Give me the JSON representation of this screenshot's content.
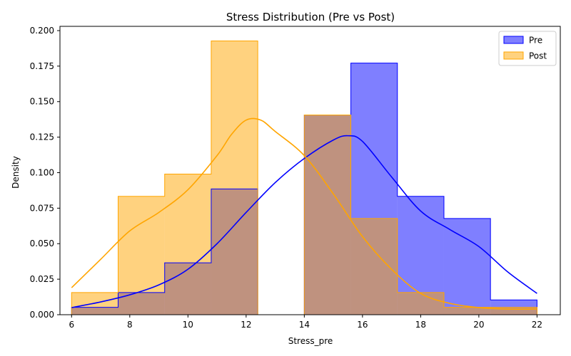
{
  "chart_data": {
    "type": "histogram",
    "title": "Stress Distribution (Pre vs Post)",
    "xlabel": "Stress_pre",
    "ylabel": "Density",
    "xlim": [
      5.6,
      22.8
    ],
    "ylim": [
      0,
      0.203
    ],
    "xticks": [
      6,
      8,
      10,
      12,
      14,
      16,
      18,
      20,
      22
    ],
    "xtick_labels": [
      "6",
      "8",
      "10",
      "12",
      "14",
      "16",
      "18",
      "20",
      "22"
    ],
    "yticks": [
      0,
      0.025,
      0.05,
      0.075,
      0.1,
      0.125,
      0.15,
      0.175,
      0.2
    ],
    "ytick_labels": [
      "0.000",
      "0.025",
      "0.050",
      "0.075",
      "0.100",
      "0.125",
      "0.150",
      "0.175",
      "0.200"
    ],
    "bin_edges": [
      6.0,
      7.6,
      9.2,
      10.8,
      12.4,
      14.0,
      15.6,
      17.2,
      18.8,
      20.4,
      22.0
    ],
    "legend_position": "upper right",
    "grid": false,
    "series": [
      {
        "name": "Pre",
        "fill_color": "#0000ff",
        "fill_opacity": 0.5,
        "edge_color": "#0000ff",
        "density": [
          0.0052,
          0.0156,
          0.0365,
          0.0885,
          0,
          0.1406,
          0.1771,
          0.0833,
          0.0677,
          0.0104
        ],
        "kde_x": [
          6,
          7,
          8,
          9,
          10,
          11,
          12,
          13,
          14,
          15,
          15.5,
          16,
          17,
          18,
          19,
          20,
          21,
          22
        ],
        "kde_y": [
          0.005,
          0.009,
          0.014,
          0.021,
          0.032,
          0.05,
          0.072,
          0.093,
          0.11,
          0.123,
          0.126,
          0.122,
          0.097,
          0.073,
          0.06,
          0.048,
          0.03,
          0.015
        ]
      },
      {
        "name": "Post",
        "fill_color": "#ffa500",
        "fill_opacity": 0.5,
        "edge_color": "#ffa500",
        "density": [
          0.0156,
          0.0833,
          0.099,
          0.1927,
          0,
          0.1406,
          0.0677,
          0.0156,
          0.0052,
          0.0052
        ],
        "kde_x": [
          6,
          7,
          8,
          9,
          10,
          11,
          11.5,
          12,
          12.5,
          13,
          14,
          15,
          16,
          17,
          18,
          19,
          20,
          21,
          22
        ],
        "kde_y": [
          0.019,
          0.039,
          0.059,
          0.072,
          0.088,
          0.112,
          0.127,
          0.137,
          0.137,
          0.129,
          0.112,
          0.085,
          0.055,
          0.032,
          0.015,
          0.008,
          0.005,
          0.004,
          0.004
        ]
      }
    ],
    "overlap_color": "#b38b7f"
  }
}
